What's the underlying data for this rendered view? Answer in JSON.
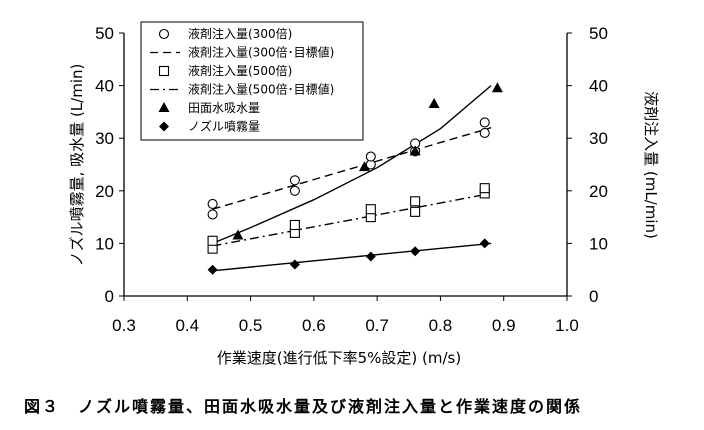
{
  "chart_data": {
    "type": "scatter",
    "caption": "図３　ノズル噴霧量、田面水吸水量及び液剤注入量と作業速度の関係",
    "xlabel": "作業速度(進行低下率5%設定) (m/s)",
    "ylabel_left": "ノズル噴霧量, 吸水量 (L/min)",
    "ylabel_right": "液剤注入量 (mL/min)",
    "xlim": [
      0.3,
      1.0
    ],
    "ylim": [
      0,
      50
    ],
    "xticks": [
      "0.3",
      "0.4",
      "0.5",
      "0.6",
      "0.7",
      "0.8",
      "0.9",
      "1.0"
    ],
    "yticks_left": [
      "0",
      "10",
      "20",
      "30",
      "40",
      "50"
    ],
    "yticks_right": [
      "0",
      "10",
      "20",
      "30",
      "40",
      "50"
    ],
    "legend_position": "top-left",
    "series": [
      {
        "name": "液剤注入量(300倍)",
        "marker": "circle-open",
        "points": [
          [
            0.44,
            15.5
          ],
          [
            0.44,
            17.5
          ],
          [
            0.57,
            20.0
          ],
          [
            0.57,
            22.0
          ],
          [
            0.69,
            25.0
          ],
          [
            0.69,
            26.5
          ],
          [
            0.76,
            27.5
          ],
          [
            0.76,
            29.0
          ],
          [
            0.87,
            31.0
          ],
          [
            0.87,
            33.0
          ]
        ]
      },
      {
        "name": "液剤注入量(300倍･目標値)",
        "line": "dashed",
        "curve": [
          [
            0.44,
            16.5
          ],
          [
            0.88,
            32.0
          ]
        ]
      },
      {
        "name": "液剤注入量(500倍)",
        "marker": "square-open",
        "points": [
          [
            0.44,
            9.0
          ],
          [
            0.44,
            10.5
          ],
          [
            0.57,
            12.0
          ],
          [
            0.57,
            13.5
          ],
          [
            0.69,
            15.0
          ],
          [
            0.69,
            16.5
          ],
          [
            0.76,
            16.0
          ],
          [
            0.76,
            18.0
          ],
          [
            0.87,
            19.5
          ],
          [
            0.87,
            20.5
          ]
        ]
      },
      {
        "name": "液剤注入量(500倍･目標値)",
        "line": "dash-dot",
        "curve": [
          [
            0.44,
            9.5
          ],
          [
            0.88,
            19.5
          ]
        ]
      },
      {
        "name": "田面水吸水量",
        "marker": "triangle-filled",
        "points": [
          [
            0.48,
            11.5
          ],
          [
            0.68,
            24.5
          ],
          [
            0.76,
            27.5
          ],
          [
            0.79,
            36.5
          ],
          [
            0.89,
            39.5
          ]
        ],
        "curve": [
          [
            0.44,
            10.0
          ],
          [
            0.5,
            13.0
          ],
          [
            0.6,
            18.3
          ],
          [
            0.7,
            24.4
          ],
          [
            0.8,
            31.8
          ],
          [
            0.88,
            40.0
          ]
        ]
      },
      {
        "name": "ノズル噴霧量",
        "marker": "diamond-filled",
        "points": [
          [
            0.44,
            5.0
          ],
          [
            0.57,
            6.0
          ],
          [
            0.69,
            7.5
          ],
          [
            0.76,
            8.5
          ],
          [
            0.87,
            10.0
          ]
        ],
        "curve": [
          [
            0.44,
            4.8
          ],
          [
            0.88,
            10.0
          ]
        ]
      }
    ]
  }
}
